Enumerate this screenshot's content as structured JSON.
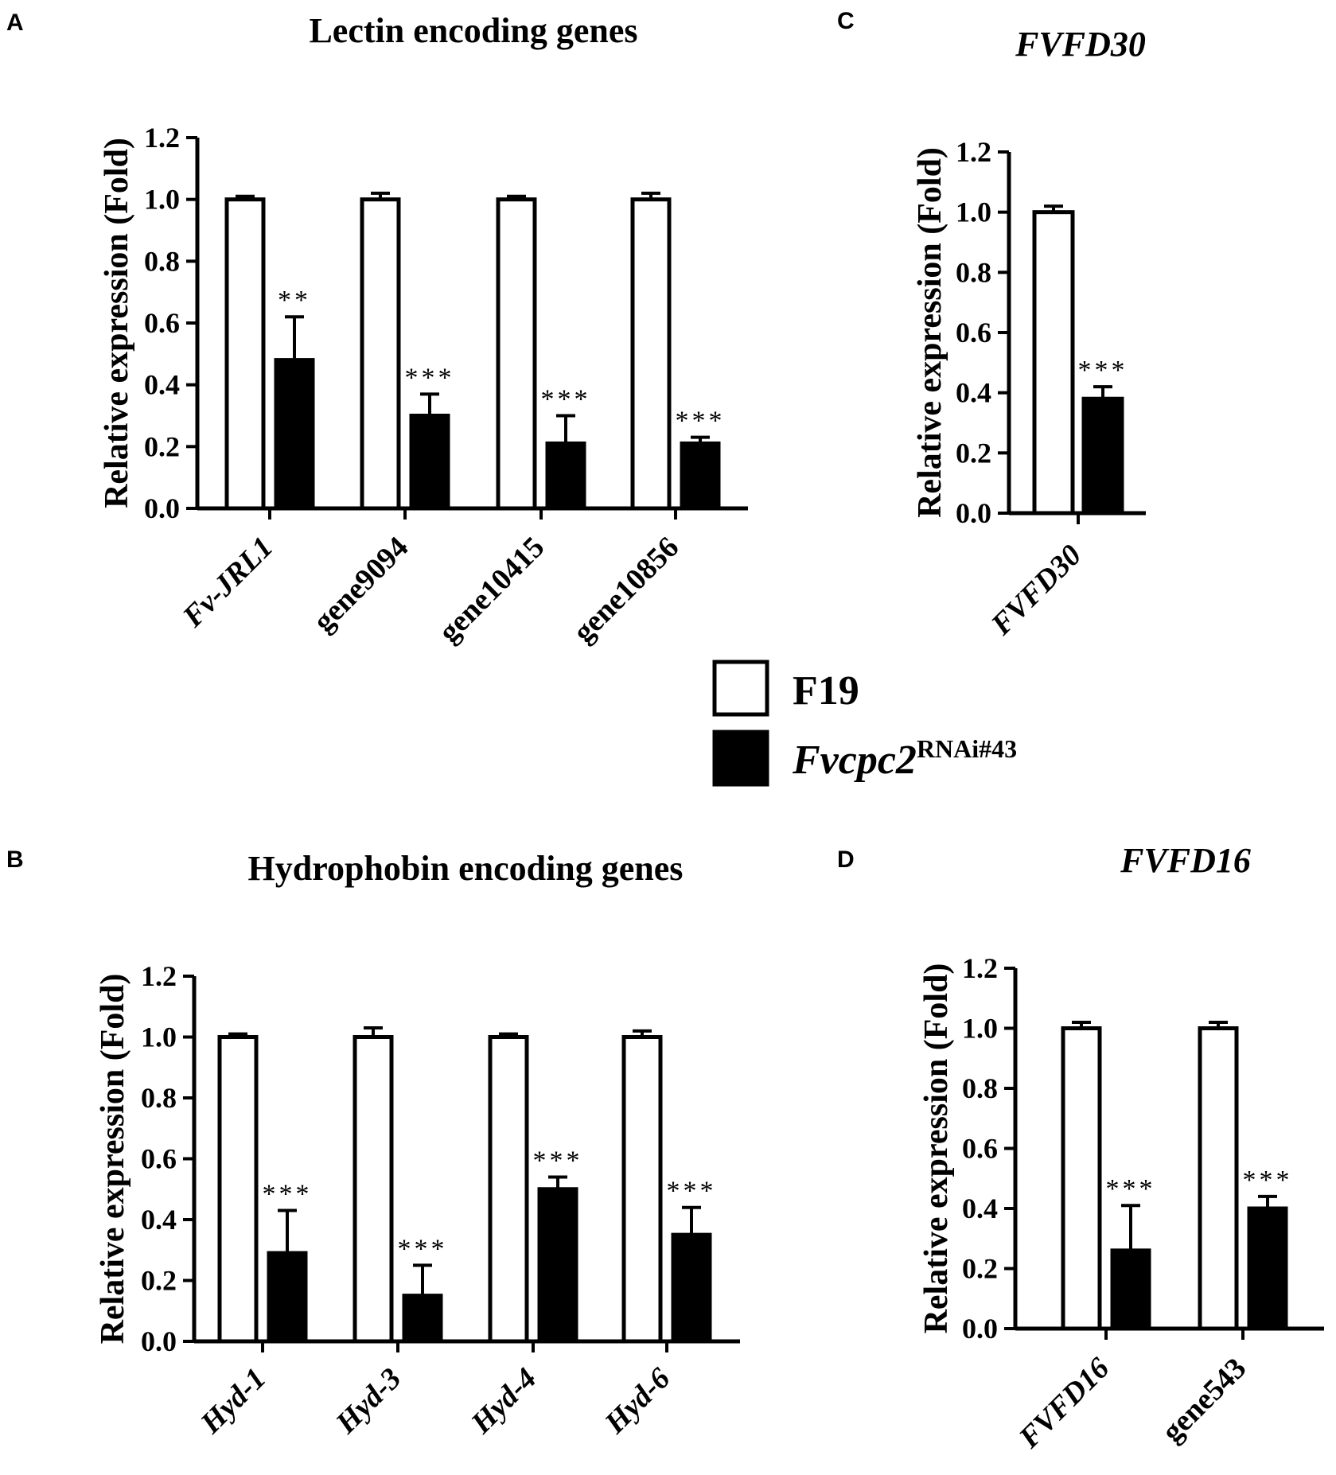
{
  "legend": [
    {
      "label": "F19",
      "italic": false,
      "sup": "",
      "fill": "#ffffff"
    },
    {
      "label": "Fvcpc2",
      "italic": true,
      "sup": "RNAi#43",
      "fill": "#000000"
    }
  ],
  "colors": {
    "F19": "#ffffff",
    "Fvcpc2RNAi43": "#000000",
    "stroke": "#000000"
  },
  "chart_data": [
    {
      "panel": "A",
      "type": "bar",
      "title": "Lectin encoding genes",
      "title_italic": false,
      "ylabel": "Relative expression (Fold)",
      "ylim": [
        0,
        1.2
      ],
      "yticks": [
        "0.0",
        "0.2",
        "0.4",
        "0.6",
        "0.8",
        "1.0",
        "1.2"
      ],
      "categories": [
        "Fv-JRL1",
        "gene9094",
        "gene10415",
        "gene10856"
      ],
      "italic_categories": [
        true,
        false,
        false,
        false
      ],
      "series": [
        {
          "name": "F19",
          "values": [
            1.0,
            1.0,
            1.0,
            1.0
          ],
          "errors": [
            0.01,
            0.02,
            0.01,
            0.02
          ]
        },
        {
          "name": "Fvcpc2RNAi#43",
          "values": [
            0.48,
            0.3,
            0.21,
            0.21
          ],
          "errors": [
            0.14,
            0.07,
            0.09,
            0.02
          ]
        }
      ],
      "significance": [
        "**",
        "***",
        "***",
        "***"
      ]
    },
    {
      "panel": "B",
      "type": "bar",
      "title": "Hydrophobin encoding genes",
      "title_italic": false,
      "ylabel": "Relative expression (Fold)",
      "ylim": [
        0,
        1.2
      ],
      "yticks": [
        "0.0",
        "0.2",
        "0.4",
        "0.6",
        "0.8",
        "1.0",
        "1.2"
      ],
      "categories": [
        "Hyd-1",
        "Hyd-3",
        "Hyd-4",
        "Hyd-6"
      ],
      "italic_categories": [
        true,
        true,
        true,
        true
      ],
      "series": [
        {
          "name": "F19",
          "values": [
            1.0,
            1.0,
            1.0,
            1.0
          ],
          "errors": [
            0.01,
            0.03,
            0.01,
            0.02
          ]
        },
        {
          "name": "Fvcpc2RNAi#43",
          "values": [
            0.29,
            0.15,
            0.5,
            0.35
          ],
          "errors": [
            0.14,
            0.1,
            0.04,
            0.09
          ]
        }
      ],
      "significance": [
        "***",
        "***",
        "***",
        "***"
      ]
    },
    {
      "panel": "C",
      "type": "bar",
      "title": "FVFD30",
      "title_italic": true,
      "ylabel": "Relative expression (Fold)",
      "ylim": [
        0,
        1.2
      ],
      "yticks": [
        "0.0",
        "0.2",
        "0.4",
        "0.6",
        "0.8",
        "1.0",
        "1.2"
      ],
      "categories": [
        "FVFD30"
      ],
      "italic_categories": [
        true
      ],
      "series": [
        {
          "name": "F19",
          "values": [
            1.0
          ],
          "errors": [
            0.02
          ]
        },
        {
          "name": "Fvcpc2RNAi#43",
          "values": [
            0.38
          ],
          "errors": [
            0.04
          ]
        }
      ],
      "significance": [
        "***"
      ]
    },
    {
      "panel": "D",
      "type": "bar",
      "title": "FVFD16",
      "title_italic": true,
      "ylabel": "Relative expression (Fold)",
      "ylim": [
        0,
        1.2
      ],
      "yticks": [
        "0.0",
        "0.2",
        "0.4",
        "0.6",
        "0.8",
        "1.0",
        "1.2"
      ],
      "categories": [
        "FVFD16",
        "gene543"
      ],
      "italic_categories": [
        true,
        false
      ],
      "series": [
        {
          "name": "F19",
          "values": [
            1.0,
            1.0
          ],
          "errors": [
            0.02,
            0.02
          ]
        },
        {
          "name": "Fvcpc2RNAi#43",
          "values": [
            0.26,
            0.4
          ],
          "errors": [
            0.15,
            0.04
          ]
        }
      ],
      "significance": [
        "***",
        "***"
      ]
    }
  ]
}
